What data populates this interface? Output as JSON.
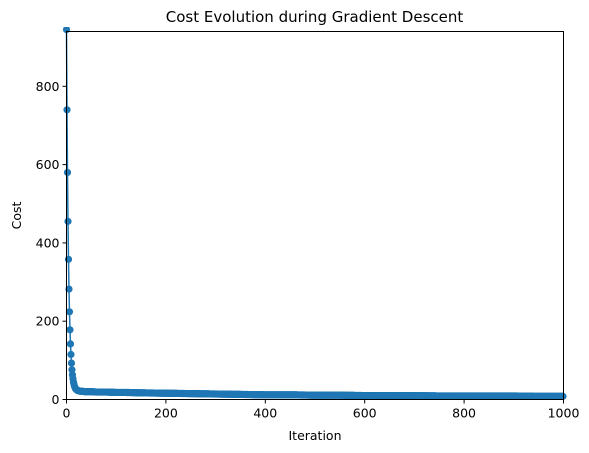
{
  "chart_data": {
    "type": "line",
    "title": "Cost Evolution during Gradient Descent",
    "xlabel": "Iteration",
    "ylabel": "Cost",
    "xlim": [
      0,
      1000
    ],
    "ylim": [
      0,
      940
    ],
    "xticks": [
      0,
      200,
      400,
      600,
      800,
      1000
    ],
    "yticks": [
      0,
      200,
      400,
      600,
      800
    ],
    "grid": false,
    "marker": "o",
    "series": [
      {
        "color": "#1f77b4",
        "x": [
          0,
          1,
          2,
          3,
          4,
          5,
          6,
          7,
          8,
          9,
          10,
          11,
          12,
          13,
          14,
          15,
          16,
          18,
          20,
          22,
          25,
          28,
          32,
          36,
          40,
          45,
          50,
          60,
          70,
          80,
          100,
          120,
          150,
          200,
          250,
          300,
          350,
          400,
          450,
          500,
          550,
          600,
          650,
          700,
          750,
          800,
          850,
          900,
          950,
          999
        ],
        "y": [
          945,
          740,
          580,
          455,
          358,
          282,
          224,
          178,
          142,
          115,
          93,
          76,
          63,
          53,
          45,
          39,
          34,
          28,
          25,
          23,
          22,
          21,
          21,
          20,
          20,
          20,
          20,
          19,
          19,
          19,
          18,
          18,
          17,
          16,
          15,
          14,
          13,
          12,
          12,
          11,
          11,
          10,
          10,
          10,
          9,
          9,
          9,
          9,
          8,
          8
        ]
      }
    ]
  }
}
